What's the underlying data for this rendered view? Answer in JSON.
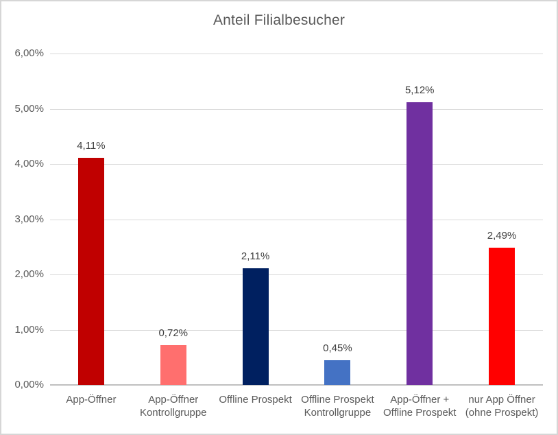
{
  "title": "Anteil Filialbesucher",
  "chart_data": {
    "type": "bar",
    "title": "Anteil Filialbesucher",
    "categories": [
      "App-Öffner",
      "App-Öffner Kontrollgruppe",
      "Offline Prospekt",
      "Offline Prospekt Kontrollgruppe",
      "App-Öffner + Offline Prospekt",
      "nur App Öffner (ohne Prospekt)"
    ],
    "values": [
      4.11,
      0.72,
      2.11,
      0.45,
      5.12,
      2.49
    ],
    "value_labels": [
      "4,11%",
      "0,72%",
      "2,11%",
      "0,45%",
      "5,12%",
      "2,49%"
    ],
    "bar_colors": [
      "#c00000",
      "#ff6f6e",
      "#002060",
      "#4472c4",
      "#7030a0",
      "#ff0000"
    ],
    "xlabel": "",
    "ylabel": "",
    "ylim": [
      0,
      6
    ],
    "grid": true,
    "legend_position": "none",
    "y_ticks": [
      {
        "label": "0,00%",
        "value": 0
      },
      {
        "label": "1,00%",
        "value": 1
      },
      {
        "label": "2,00%",
        "value": 2
      },
      {
        "label": "3,00%",
        "value": 3
      },
      {
        "label": "4,00%",
        "value": 4
      },
      {
        "label": "5,00%",
        "value": 5
      },
      {
        "label": "6,00%",
        "value": 6
      }
    ]
  },
  "colors": {
    "title_text": "#595959",
    "axis_text": "#595959",
    "value_label_text": "#404040",
    "gridline": "#d9d9d9",
    "axis_line": "#bfbfbf",
    "background": "#ffffff",
    "frame_border": "#d6d6d6"
  }
}
